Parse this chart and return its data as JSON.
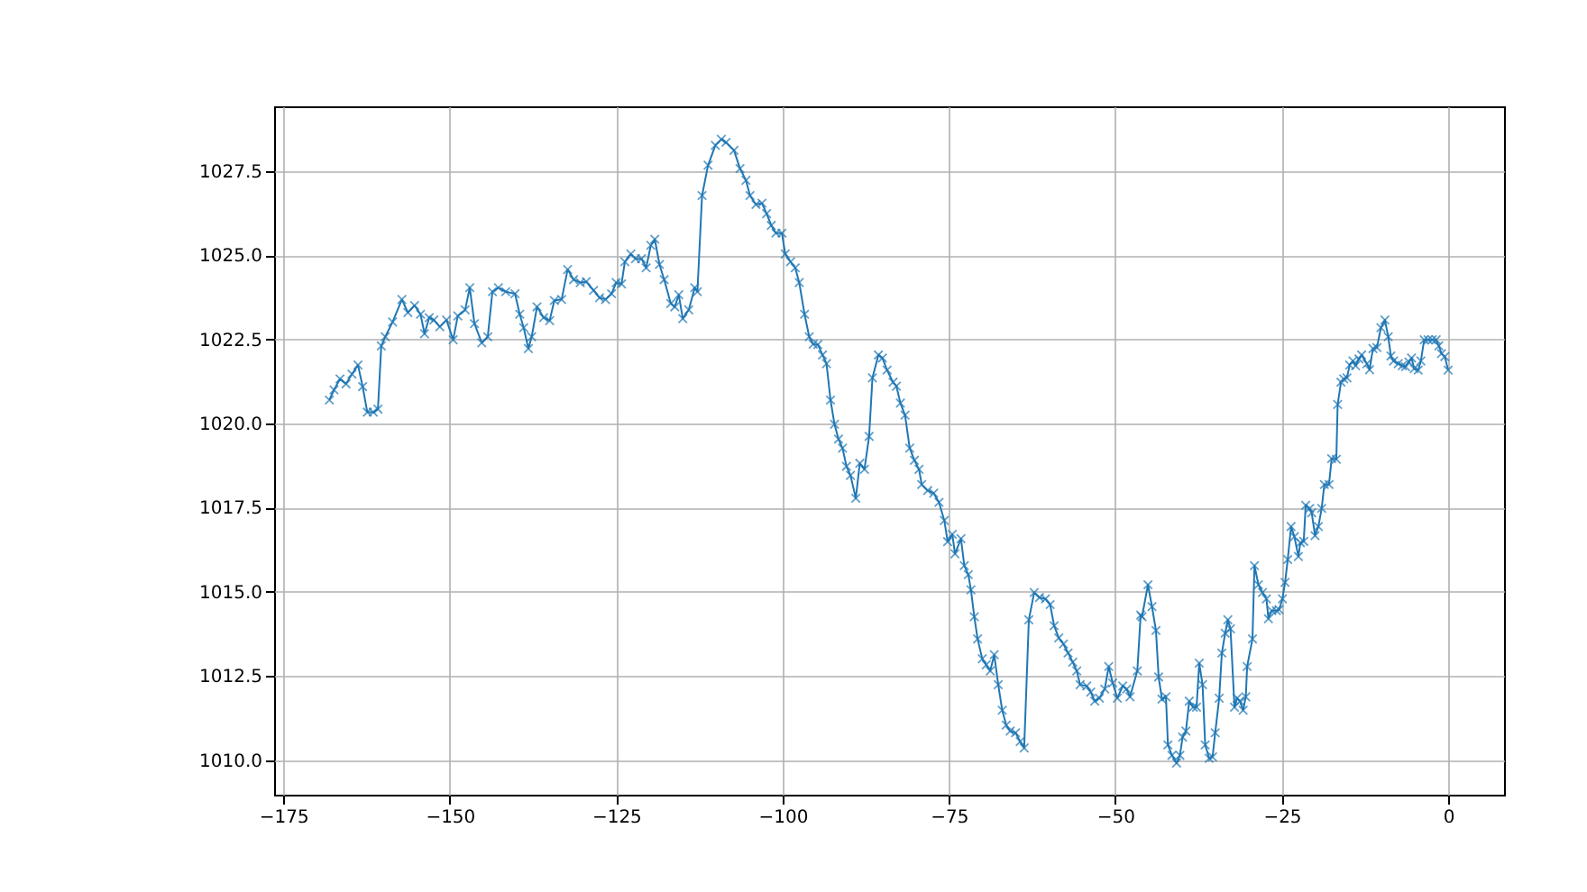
{
  "chart_data": {
    "type": "line",
    "marker": "cross",
    "grid": true,
    "xlim": [
      -176.4,
      8.4
    ],
    "ylim": [
      1008.97,
      1029.43
    ],
    "xticks": [
      {
        "value": -175,
        "label": "−175"
      },
      {
        "value": -150,
        "label": "−150"
      },
      {
        "value": -125,
        "label": "−125"
      },
      {
        "value": -100,
        "label": "−100"
      },
      {
        "value": -75,
        "label": "−75"
      },
      {
        "value": -50,
        "label": "−50"
      },
      {
        "value": -25,
        "label": "−25"
      },
      0
    ],
    "yticks": [
      {
        "value": 1010,
        "label": "1010.0"
      },
      1012.5,
      {
        "value": 1015,
        "label": "1015.0"
      },
      1017.5,
      {
        "value": 1020,
        "label": "1020.0"
      },
      1022.5,
      {
        "value": 1025,
        "label": "1025.0"
      },
      1027.5
    ],
    "series": [
      {
        "color": "#1f77b4",
        "x": [
          -168.1,
          -167.4,
          -166.5,
          -165.6,
          -164.7,
          -163.8,
          -163.1,
          -162.4,
          -161.5,
          -160.8,
          -160.3,
          -159.7,
          -158.6,
          -157.2,
          -156.3,
          -155.3,
          -154.4,
          -153.8,
          -153.1,
          -152.4,
          -151.5,
          -150.5,
          -149.5,
          -148.8,
          -147.7,
          -147.0,
          -146.3,
          -145.2,
          -144.3,
          -143.6,
          -142.7,
          -141.6,
          -140.2,
          -139.5,
          -138.9,
          -138.2,
          -137.7,
          -136.9,
          -135.9,
          -135.0,
          -134.3,
          -133.2,
          -132.3,
          -131.4,
          -130.4,
          -129.5,
          -128.4,
          -127.5,
          -126.6,
          -125.7,
          -125.0,
          -124.2,
          -123.7,
          -122.8,
          -122.1,
          -121.2,
          -120.5,
          -119.8,
          -119.2,
          -118.5,
          -117.8,
          -116.8,
          -116.2,
          -115.6,
          -115.0,
          -114.1,
          -113.2,
          -112.8,
          -112.1,
          -111.2,
          -110.1,
          -109.2,
          -108.5,
          -107.3,
          -106.4,
          -105.5,
          -104.9,
          -104.0,
          -103.1,
          -102.4,
          -101.7,
          -101.0,
          -100.1,
          -99.6,
          -98.8,
          -98.1,
          -97.5,
          -96.7,
          -96.0,
          -95.4,
          -94.7,
          -94.0,
          -93.4,
          -92.8,
          -92.2,
          -91.6,
          -91.0,
          -90.4,
          -89.8,
          -89.0,
          -88.4,
          -87.7,
          -87.0,
          -86.5,
          -85.6,
          -85.0,
          -84.3,
          -83.4,
          -82.9,
          -82.3,
          -81.6,
          -80.9,
          -80.2,
          -79.5,
          -79.1,
          -78.2,
          -77.3,
          -76.5,
          -75.7,
          -75.2,
          -74.5,
          -74.1,
          -73.2,
          -72.7,
          -72.1,
          -71.7,
          -71.2,
          -70.7,
          -70.0,
          -69.4,
          -68.8,
          -68.2,
          -67.6,
          -67.0,
          -66.4,
          -65.8,
          -65.0,
          -64.3,
          -63.7,
          -63.0,
          -62.2,
          -61.4,
          -60.5,
          -59.8,
          -59.2,
          -58.5,
          -57.8,
          -57.1,
          -56.4,
          -55.8,
          -55.3,
          -54.3,
          -53.7,
          -53.1,
          -52.4,
          -51.6,
          -51.0,
          -50.4,
          -49.7,
          -48.9,
          -48.3,
          -47.8,
          -46.7,
          -46.2,
          -46.0,
          -45.1,
          -44.5,
          -43.9,
          -43.5,
          -43.0,
          -42.4,
          -42.1,
          -41.5,
          -40.8,
          -40.3,
          -39.9,
          -39.4,
          -38.9,
          -38.3,
          -37.8,
          -37.4,
          -36.9,
          -36.5,
          -35.9,
          -35.4,
          -35.0,
          -34.4,
          -34.0,
          -33.5,
          -33.1,
          -32.7,
          -32.1,
          -31.7,
          -31.3,
          -30.8,
          -30.4,
          -30.2,
          -29.4,
          -29.1,
          -28.5,
          -27.9,
          -27.3,
          -27.0,
          -26.5,
          -25.8,
          -25.4,
          -24.9,
          -24.5,
          -24.1,
          -23.6,
          -23.1,
          -22.5,
          -22.2,
          -21.7,
          -21.4,
          -20.8,
          -20.5,
          -20.0,
          -19.5,
          -19.0,
          -18.6,
          -17.9,
          -17.5,
          -16.8,
          -16.6,
          -16.1,
          -15.7,
          -15.2,
          -14.8,
          -14.3,
          -13.9,
          -13.4,
          -13.0,
          -12.2,
          -11.8,
          -11.3,
          -10.7,
          -10.1,
          -9.5,
          -9.0,
          -8.6,
          -8.2,
          -7.5,
          -6.9,
          -6.4,
          -5.9,
          -5.5,
          -5.1,
          -4.5,
          -4.1,
          -3.6,
          -3.0,
          -2.4,
          -1.8,
          -1.4,
          -1.0,
          -0.5,
          0
        ],
        "values": [
          1020.7,
          1021.0,
          1021.33,
          1021.18,
          1021.47,
          1021.74,
          1021.1,
          1020.34,
          1020.34,
          1020.43,
          1022.31,
          1022.58,
          1023.02,
          1023.69,
          1023.3,
          1023.51,
          1023.25,
          1022.67,
          1023.15,
          1023.08,
          1022.88,
          1023.08,
          1022.49,
          1023.2,
          1023.38,
          1024.04,
          1022.97,
          1022.4,
          1022.58,
          1023.92,
          1024.04,
          1023.92,
          1023.86,
          1023.25,
          1022.85,
          1022.23,
          1022.58,
          1023.47,
          1023.15,
          1023.06,
          1023.66,
          1023.69,
          1024.58,
          1024.28,
          1024.19,
          1024.22,
          1023.96,
          1023.74,
          1023.69,
          1023.86,
          1024.19,
          1024.15,
          1024.81,
          1025.04,
          1024.9,
          1024.9,
          1024.63,
          1025.3,
          1025.48,
          1024.73,
          1024.28,
          1023.57,
          1023.47,
          1023.83,
          1023.12,
          1023.38,
          1024.04,
          1023.92,
          1026.78,
          1027.68,
          1028.27,
          1028.45,
          1028.36,
          1028.12,
          1027.58,
          1027.23,
          1026.78,
          1026.51,
          1026.55,
          1026.24,
          1025.89,
          1025.66,
          1025.66,
          1025.04,
          1024.81,
          1024.63,
          1024.19,
          1023.25,
          1022.58,
          1022.36,
          1022.35,
          1022.04,
          1021.78,
          1020.7,
          1019.98,
          1019.54,
          1019.27,
          1018.73,
          1018.46,
          1017.78,
          1018.82,
          1018.64,
          1019.62,
          1021.36,
          1022.04,
          1021.95,
          1021.59,
          1021.23,
          1021.11,
          1020.61,
          1020.25,
          1019.27,
          1018.91,
          1018.64,
          1018.19,
          1018.01,
          1017.93,
          1017.66,
          1017.12,
          1016.49,
          1016.71,
          1016.13,
          1016.58,
          1015.78,
          1015.51,
          1015.06,
          1014.26,
          1013.6,
          1013.01,
          1012.83,
          1012.65,
          1013.13,
          1012.24,
          1011.48,
          1011.04,
          1010.86,
          1010.81,
          1010.55,
          1010.36,
          1014.17,
          1014.98,
          1014.83,
          1014.79,
          1014.62,
          1013.99,
          1013.63,
          1013.45,
          1013.18,
          1012.91,
          1012.65,
          1012.24,
          1012.2,
          1012.02,
          1011.75,
          1011.84,
          1012.11,
          1012.78,
          1012.29,
          1011.84,
          1012.2,
          1012.11,
          1011.88,
          1012.65,
          1014.31,
          1014.26,
          1015.21,
          1014.56,
          1013.85,
          1012.47,
          1011.81,
          1011.88,
          1010.45,
          1010.14,
          1009.91,
          1010.14,
          1010.68,
          1010.86,
          1011.75,
          1011.57,
          1011.57,
          1012.88,
          1012.24,
          1010.45,
          1010.05,
          1010.09,
          1010.81,
          1011.84,
          1013.18,
          1013.77,
          1014.17,
          1013.9,
          1011.57,
          1011.84,
          1011.75,
          1011.48,
          1011.88,
          1012.78,
          1013.6,
          1015.78,
          1015.21,
          1014.98,
          1014.79,
          1014.2,
          1014.44,
          1014.44,
          1014.47,
          1014.79,
          1015.28,
          1015.96,
          1016.94,
          1016.64,
          1016.05,
          1016.46,
          1016.5,
          1017.57,
          1017.48,
          1017.35,
          1016.67,
          1016.94,
          1017.48,
          1018.19,
          1018.19,
          1018.96,
          1018.94,
          1020.57,
          1021.23,
          1021.33,
          1021.36,
          1021.74,
          1021.86,
          1021.72,
          1021.92,
          1022.04,
          1021.78,
          1021.6,
          1022.23,
          1022.26,
          1022.85,
          1023.08,
          1022.58,
          1022.01,
          1021.86,
          1021.78,
          1021.72,
          1021.69,
          1021.83,
          1021.95,
          1021.63,
          1021.59,
          1021.86,
          1022.49,
          1022.49,
          1022.49,
          1022.49,
          1022.31,
          1022.08,
          1021.99,
          1021.59
        ]
      }
    ]
  }
}
